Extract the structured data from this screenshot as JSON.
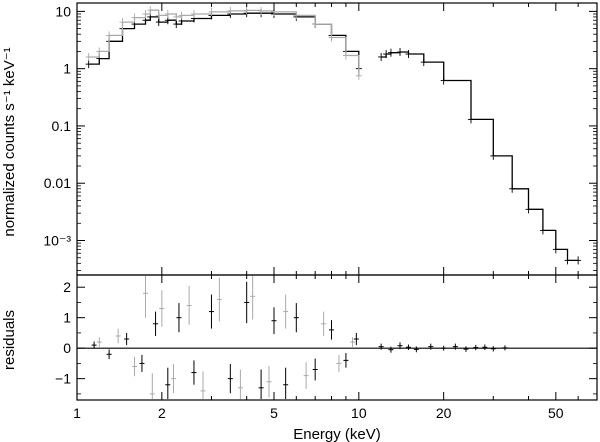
{
  "chart_data": [
    {
      "type": "line",
      "panel": "spectrum",
      "ylabel": "normalized counts s⁻¹ keV⁻¹",
      "yscale": "log",
      "ylim": [
        0.00025,
        14
      ],
      "xscale": "log",
      "xlim": [
        1,
        70
      ],
      "yticks": [
        {
          "value": 10,
          "label": "10"
        },
        {
          "value": 1,
          "label": "1"
        },
        {
          "value": 0.1,
          "label": "0.1"
        },
        {
          "value": 0.01,
          "label": "0.01"
        },
        {
          "value": 0.001,
          "label": "10⁻³"
        }
      ],
      "series": [
        {
          "color": "#000000",
          "x": [
            1.1,
            1.2,
            1.3,
            1.45,
            1.6,
            1.75,
            1.82,
            1.95,
            2.1,
            2.25,
            2.35,
            2.6,
            3.0,
            3.5,
            4.0,
            4.5,
            5.0,
            6.0,
            7.0,
            8.0,
            9.0,
            10.0
          ],
          "y": [
            1.2,
            1.5,
            3.0,
            5.0,
            6.0,
            7.0,
            8.0,
            6.5,
            7.0,
            6.0,
            6.8,
            7.5,
            8.5,
            9.0,
            9.3,
            9.3,
            9.0,
            8.0,
            6.0,
            3.8,
            2.0,
            1.0
          ]
        },
        {
          "color": "#aaaaaa",
          "x": [
            1.1,
            1.2,
            1.3,
            1.45,
            1.6,
            1.75,
            1.82,
            1.95,
            2.1,
            2.25,
            2.35,
            2.6,
            3.0,
            3.5,
            4.0,
            4.5,
            5.0,
            6.0,
            7.0,
            8.0,
            9.0,
            10.0
          ],
          "y": [
            1.6,
            2.0,
            3.8,
            6.5,
            7.8,
            9.0,
            10.5,
            8.5,
            9.0,
            8.0,
            8.5,
            9.0,
            9.8,
            10.2,
            10.4,
            10.2,
            9.8,
            8.5,
            6.0,
            3.5,
            1.7,
            0.75
          ]
        },
        {
          "color": "#000000",
          "x": [
            12.0,
            12.5,
            13.0,
            14.0,
            15.0,
            17.0,
            20.0,
            25.0,
            30.0,
            35.0,
            40.0,
            45.0,
            50.0,
            55.0,
            60.0
          ],
          "y": [
            1.6,
            1.8,
            1.9,
            1.95,
            1.8,
            1.3,
            0.62,
            0.13,
            0.03,
            0.008,
            0.0035,
            0.0015,
            0.0007,
            0.00045,
            0.00045
          ]
        }
      ]
    },
    {
      "type": "scatter",
      "panel": "residuals",
      "ylabel": "residuals",
      "xlabel": "Energy (keV)",
      "xscale": "log",
      "xlim": [
        1,
        70
      ],
      "ylim": [
        -1.7,
        2.4
      ],
      "reference_line": 0,
      "yticks": [
        {
          "value": 2,
          "label": "2"
        },
        {
          "value": 1,
          "label": "1"
        },
        {
          "value": 0,
          "label": "0"
        },
        {
          "value": -1,
          "label": "−1"
        }
      ],
      "xticks": [
        {
          "value": 1,
          "label": "1"
        },
        {
          "value": 2,
          "label": "2"
        },
        {
          "value": 5,
          "label": "5"
        },
        {
          "value": 10,
          "label": "10"
        },
        {
          "value": 20,
          "label": "20"
        },
        {
          "value": 50,
          "label": "50"
        }
      ],
      "series": [
        {
          "color": "#000000",
          "x": [
            1.15,
            1.3,
            1.5,
            1.7,
            1.9,
            2.1,
            2.3,
            2.6,
            3.0,
            3.5,
            4.0,
            4.5,
            5.0,
            5.5,
            6.0,
            7.0,
            8.0,
            9.0,
            9.8,
            12,
            13,
            14,
            15,
            16,
            18,
            20,
            22,
            24,
            26,
            28,
            30,
            33
          ],
          "y": [
            0.1,
            -0.2,
            0.3,
            -0.5,
            0.8,
            -1.2,
            1.0,
            -0.8,
            1.2,
            -1.0,
            1.5,
            -1.3,
            0.9,
            -1.2,
            1.0,
            -0.7,
            0.6,
            -0.4,
            0.3,
            0.05,
            -0.05,
            0.08,
            0.03,
            -0.04,
            0.05,
            0.0,
            0.05,
            -0.03,
            0.02,
            0.03,
            -0.02,
            0.01
          ]
        },
        {
          "color": "#aaaaaa",
          "x": [
            1.2,
            1.4,
            1.6,
            1.75,
            1.85,
            2.0,
            2.2,
            2.5,
            2.8,
            3.2,
            3.8,
            4.2,
            4.8,
            5.5,
            6.5,
            7.5,
            8.5,
            9.5
          ],
          "y": [
            0.2,
            0.4,
            -0.6,
            1.8,
            -1.5,
            1.3,
            -1.0,
            1.4,
            -1.4,
            1.6,
            -1.3,
            1.7,
            -1.1,
            1.2,
            -0.9,
            0.8,
            -0.5,
            0.2
          ]
        }
      ]
    }
  ]
}
